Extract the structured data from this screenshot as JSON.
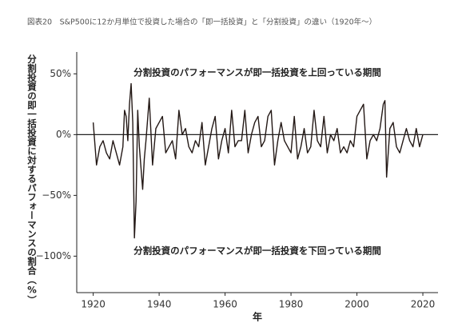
{
  "chart_data": {
    "type": "line",
    "title": "図表20　S&P500に12か月単位で投資した場合の「即一括投資」と「分割投資」の違い（1920年～）",
    "y_label": "分割投資の即一括投資に対するパフォーマンスの割合（%）",
    "x_label": "年",
    "annotations": [
      "分割投資のパフォーマンスが即一括投資を上回っている期間",
      "分割投資のパフォーマンスが即一括投資を下回っている期間"
    ],
    "xlim": [
      1915,
      2024.6
    ],
    "xticks": [
      1920,
      1940,
      1960,
      1980,
      2000,
      2020
    ],
    "ylim": [
      -130,
      68
    ],
    "yticks": [
      {
        "value": 50,
        "label": "50%"
      },
      {
        "value": 0,
        "label": "0%"
      },
      {
        "value": -50,
        "label": "−50%"
      },
      {
        "value": -100,
        "label": "−100%"
      }
    ],
    "reference_line": 0,
    "color": "#231815",
    "x": [
      1920,
      1921,
      1922,
      1923,
      1924,
      1925,
      1926,
      1927,
      1928,
      1929,
      1929.5,
      1930,
      1930.5,
      1931,
      1931.5,
      1932,
      1932.5,
      1933,
      1933.5,
      1934,
      1935,
      1935.5,
      1936,
      1937,
      1938,
      1939,
      1940,
      1941,
      1942,
      1943,
      1944,
      1945,
      1946,
      1947,
      1948,
      1949,
      1950,
      1951,
      1952,
      1953,
      1954,
      1955,
      1956,
      1957,
      1958,
      1959,
      1960,
      1961,
      1962,
      1963,
      1964,
      1965,
      1966,
      1967,
      1968,
      1969,
      1970,
      1971,
      1972,
      1973,
      1974,
      1975,
      1976,
      1977,
      1978,
      1979,
      1980,
      1981,
      1982,
      1983,
      1984,
      1985,
      1986,
      1987,
      1988,
      1989,
      1990,
      1991,
      1992,
      1993,
      1994,
      1995,
      1996,
      1997,
      1998,
      1999,
      2000,
      2001,
      2002,
      2003,
      2004,
      2005,
      2006,
      2007,
      2008,
      2008.5,
      2009,
      2009.5,
      2010,
      2011,
      2012,
      2013,
      2014,
      2015,
      2016,
      2017,
      2018,
      2019,
      2020
    ],
    "values": [
      10,
      -25,
      -10,
      -5,
      -15,
      -20,
      -5,
      -15,
      -25,
      -10,
      20,
      15,
      -5,
      25,
      42,
      10,
      -85,
      -55,
      20,
      -10,
      -45,
      -20,
      -5,
      30,
      -25,
      5,
      10,
      15,
      -15,
      -10,
      -5,
      -20,
      20,
      0,
      5,
      -10,
      -15,
      -5,
      -10,
      10,
      -25,
      -10,
      5,
      15,
      -20,
      -5,
      5,
      -15,
      20,
      -10,
      -5,
      -5,
      20,
      -15,
      0,
      10,
      15,
      -10,
      -5,
      15,
      20,
      -25,
      -5,
      10,
      -5,
      -10,
      -15,
      15,
      -20,
      -10,
      5,
      -15,
      -10,
      20,
      -5,
      -10,
      15,
      -15,
      0,
      -5,
      5,
      -15,
      -10,
      -15,
      -5,
      -10,
      15,
      20,
      25,
      -20,
      -5,
      0,
      -5,
      5,
      25,
      28,
      -35,
      -15,
      5,
      10,
      -10,
      -15,
      -5,
      5,
      -5,
      -10,
      5,
      -10,
      0
    ]
  }
}
